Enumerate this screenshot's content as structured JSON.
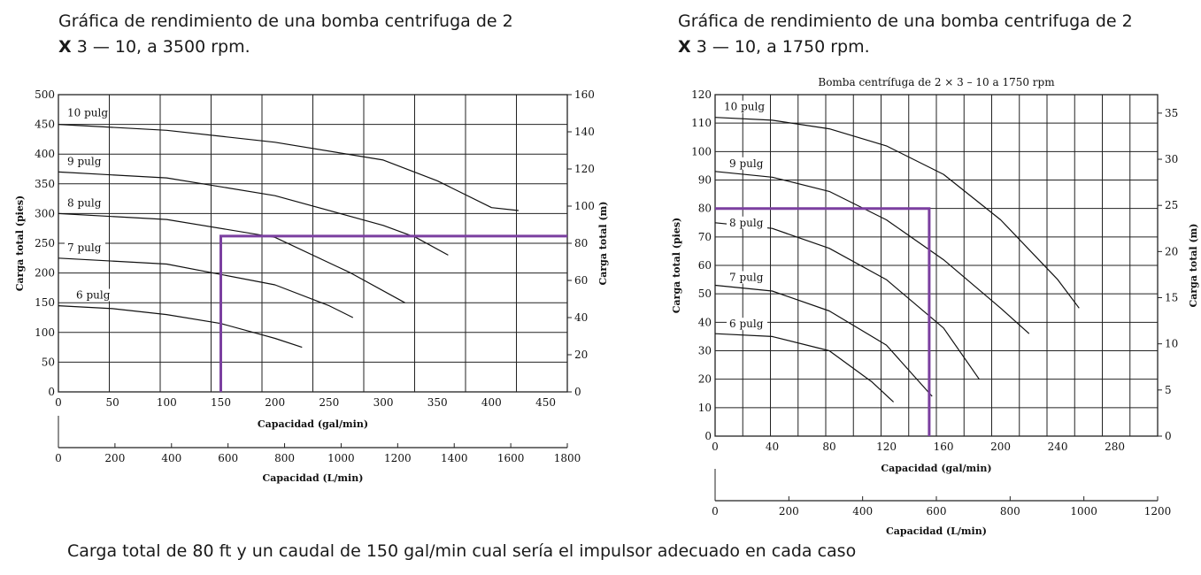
{
  "headings": [
    {
      "line1": "Gráfica de rendimiento de una bomba centrifuga de 2",
      "x": "X",
      "line2": " 3 — 10, a 3500 rpm."
    },
    {
      "line1": "Gráfica de rendimiento de una bomba centrifuga de 2",
      "x": "X",
      "line2": " 3 — 10, a 1750 rpm."
    }
  ],
  "question": "Carga total de 80 ft y un caudal de 150 gal/min cual sería el impulsor adecuado en cada caso",
  "colors": {
    "grid": "#222222",
    "curve": "#111111",
    "marker": "#7b3fa0"
  },
  "chart_data": [
    {
      "type": "line",
      "title": "",
      "xlabel": "Capacidad (gal/min)",
      "ylabel": "Carga total (pies)",
      "y2label": "Carga total (m)",
      "x2label": "Capacidad (L/min)",
      "xlim": [
        0,
        470
      ],
      "ylim": [
        0,
        500
      ],
      "y2lim": [
        0,
        160
      ],
      "x2lim": [
        0,
        1800
      ],
      "xticks": [
        0,
        50,
        100,
        150,
        200,
        250,
        300,
        350,
        400,
        450
      ],
      "yticks": [
        0,
        50,
        100,
        150,
        200,
        250,
        300,
        350,
        400,
        450,
        500
      ],
      "y2ticks": [
        0,
        20,
        40,
        60,
        80,
        100,
        120,
        140,
        160
      ],
      "x2ticks": [
        0,
        200,
        400,
        600,
        800,
        1000,
        1200,
        1400,
        1600,
        1800
      ],
      "grid": true,
      "series": [
        {
          "name": "10 pulg",
          "x": [
            0,
            100,
            200,
            300,
            350,
            400,
            425
          ],
          "y": [
            450,
            440,
            420,
            390,
            355,
            310,
            305
          ]
        },
        {
          "name": "9 pulg",
          "x": [
            0,
            100,
            200,
            300,
            330,
            360
          ],
          "y": [
            370,
            360,
            330,
            280,
            260,
            230
          ]
        },
        {
          "name": "8 pulg",
          "x": [
            0,
            100,
            200,
            270,
            320
          ],
          "y": [
            300,
            290,
            260,
            200,
            150
          ]
        },
        {
          "name": "7 pulg",
          "x": [
            0,
            100,
            200,
            250,
            272
          ],
          "y": [
            225,
            215,
            180,
            145,
            125
          ]
        },
        {
          "name": "6 pulg",
          "x": [
            0,
            50,
            100,
            150,
            200,
            225
          ],
          "y": [
            145,
            140,
            130,
            115,
            90,
            75
          ]
        }
      ],
      "markers": [
        {
          "x": [
            150,
            150,
            470
          ],
          "y": [
            0,
            262,
            262
          ]
        }
      ]
    },
    {
      "type": "line",
      "title": "Bomba centrífuga de 2 × 3 – 10 a 1750 rpm",
      "xlabel": "Capacidad (gal/min)",
      "ylabel": "Carga total (pies)",
      "y2label": "Carga total (m)",
      "x2label": "Capacidad (L/min)",
      "xlim": [
        0,
        310
      ],
      "ylim": [
        0,
        120
      ],
      "y2lim": [
        0,
        37
      ],
      "x2lim": [
        0,
        1200
      ],
      "xticks": [
        0,
        40,
        80,
        120,
        160,
        200,
        240,
        280
      ],
      "xticklabels": [
        "0",
        "40",
        "80",
        "120",
        "160",
        "200",
        "240",
        "280"
      ],
      "yticks": [
        0,
        10,
        20,
        30,
        40,
        50,
        60,
        70,
        80,
        90,
        100,
        110,
        120
      ],
      "y2ticks": [
        0,
        5,
        10,
        15,
        20,
        25,
        30,
        35
      ],
      "x2ticks": [
        0,
        200,
        400,
        600,
        800,
        1000,
        1200
      ],
      "grid": true,
      "series": [
        {
          "name": "10 pulg",
          "x": [
            0,
            40,
            80,
            120,
            160,
            200,
            240,
            255
          ],
          "y": [
            112,
            111,
            108,
            102,
            92,
            76,
            55,
            45
          ]
        },
        {
          "name": "9 pulg",
          "x": [
            0,
            40,
            80,
            120,
            160,
            200,
            220
          ],
          "y": [
            93,
            91,
            86,
            76,
            62,
            45,
            36
          ]
        },
        {
          "name": "8 pulg",
          "x": [
            0,
            40,
            80,
            120,
            160,
            185
          ],
          "y": [
            75,
            73,
            66,
            55,
            38,
            20
          ]
        },
        {
          "name": "7 pulg",
          "x": [
            0,
            40,
            80,
            120,
            152
          ],
          "y": [
            53,
            51,
            44,
            32,
            14
          ]
        },
        {
          "name": "6 pulg",
          "x": [
            0,
            40,
            80,
            110,
            125
          ],
          "y": [
            36,
            35,
            30,
            19,
            12
          ]
        }
      ],
      "markers": [
        {
          "x": [
            0,
            150,
            150
          ],
          "y": [
            80,
            80,
            0
          ]
        }
      ]
    }
  ]
}
